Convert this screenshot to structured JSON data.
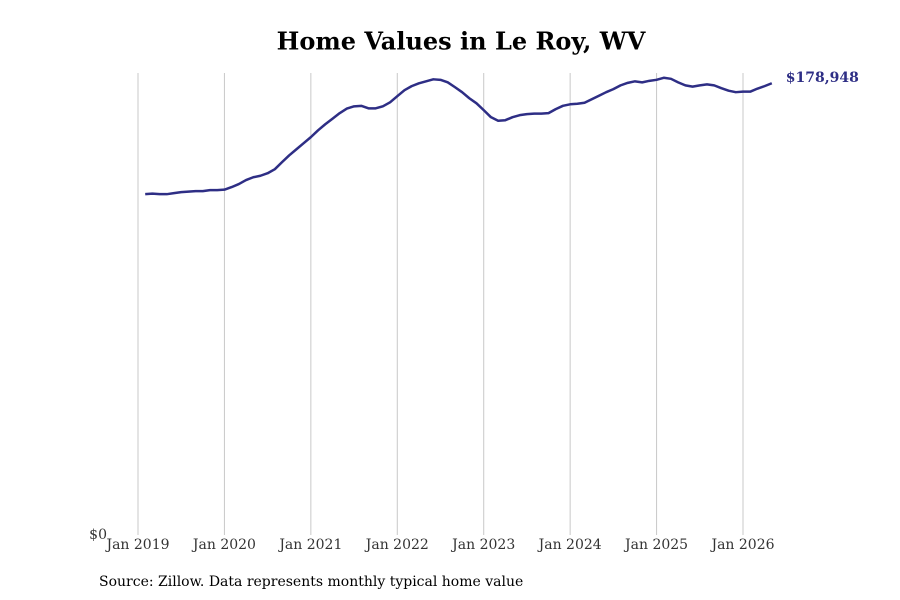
{
  "chart_data": {
    "type": "line",
    "title": "Home Values in Le Roy, WV",
    "source": "Source: Zillow. Data represents monthly typical home value",
    "x": [
      "2019-02",
      "2019-03",
      "2019-04",
      "2019-05",
      "2019-06",
      "2019-07",
      "2019-08",
      "2019-09",
      "2019-10",
      "2019-11",
      "2019-12",
      "2020-01",
      "2020-02",
      "2020-03",
      "2020-04",
      "2020-05",
      "2020-06",
      "2020-07",
      "2020-08",
      "2020-09",
      "2020-10",
      "2020-11",
      "2020-12",
      "2021-01",
      "2021-02",
      "2021-03",
      "2021-04",
      "2021-05",
      "2021-06",
      "2021-07",
      "2021-08",
      "2021-09",
      "2021-10",
      "2021-11",
      "2021-12",
      "2022-01",
      "2022-02",
      "2022-03",
      "2022-04",
      "2022-05",
      "2022-06",
      "2022-07",
      "2022-08",
      "2022-09",
      "2022-10",
      "2022-11",
      "2022-12",
      "2023-01",
      "2023-02",
      "2023-03",
      "2023-04",
      "2023-05",
      "2023-06",
      "2023-07",
      "2023-08",
      "2023-09",
      "2023-10",
      "2023-11",
      "2023-12",
      "2024-01",
      "2024-02",
      "2024-03",
      "2024-04",
      "2024-05",
      "2024-06",
      "2024-07",
      "2024-08",
      "2024-09",
      "2024-10",
      "2024-11",
      "2024-12",
      "2025-01",
      "2025-02",
      "2025-03",
      "2025-04",
      "2025-05",
      "2025-06",
      "2025-07",
      "2025-08",
      "2025-09",
      "2025-10",
      "2025-11",
      "2025-12",
      "2026-01",
      "2026-02",
      "2026-03",
      "2026-04",
      "2026-05"
    ],
    "series": [
      {
        "name": "Le Roy, WV",
        "color": "#2e2e85",
        "values": [
          135000,
          135200,
          135000,
          135000,
          135400,
          135800,
          136000,
          136200,
          136200,
          136600,
          136600,
          136800,
          137800,
          139000,
          140600,
          141700,
          142300,
          143300,
          144900,
          147700,
          150400,
          152800,
          155200,
          157600,
          160300,
          162700,
          164900,
          167100,
          168900,
          169800,
          170000,
          169000,
          169000,
          169800,
          171400,
          173800,
          176200,
          177800,
          178900,
          179700,
          180500,
          180300,
          179300,
          177400,
          175400,
          173000,
          171000,
          168300,
          165500,
          164100,
          164300,
          165500,
          166300,
          166700,
          166900,
          166900,
          167100,
          168700,
          170000,
          170600,
          170800,
          171200,
          172600,
          174000,
          175400,
          176600,
          178100,
          179100,
          179700,
          179300,
          179900,
          180300,
          181100,
          180700,
          179300,
          178100,
          177600,
          178100,
          178500,
          178100,
          177000,
          176000,
          175400,
          175600,
          175600,
          176800,
          177800,
          178948
        ],
        "value_labels": [
          null,
          null,
          null,
          null,
          null,
          null,
          null,
          null,
          null,
          null,
          null,
          null,
          null,
          null,
          null,
          null,
          null,
          null,
          null,
          null,
          null,
          null,
          null,
          null,
          null,
          null,
          null,
          null,
          null,
          null,
          null,
          null,
          null,
          null,
          null,
          null,
          null,
          null,
          null,
          null,
          null,
          null,
          null,
          null,
          null,
          null,
          null,
          null,
          null,
          null,
          null,
          null,
          null,
          null,
          null,
          null,
          null,
          null,
          null,
          null,
          null,
          null,
          null,
          null,
          null,
          null,
          null,
          null,
          null,
          null,
          null,
          null,
          null,
          null,
          null,
          null,
          null,
          null,
          null,
          null,
          null,
          null,
          null,
          null,
          null,
          null,
          null,
          "$178,948"
        ]
      }
    ],
    "xlim": [
      "2019-01",
      "2026-01"
    ],
    "xticks": [
      {
        "value": "2019-01",
        "label": "Jan 2019"
      },
      {
        "value": "2020-01",
        "label": "Jan 2020"
      },
      {
        "value": "2021-01",
        "label": "Jan 2021"
      },
      {
        "value": "2022-01",
        "label": "Jan 2022"
      },
      {
        "value": "2023-01",
        "label": "Jan 2023"
      },
      {
        "value": "2024-01",
        "label": "Jan 2024"
      },
      {
        "value": "2025-01",
        "label": "Jan 2025"
      },
      {
        "value": "2026-01",
        "label": "Jan 2026"
      }
    ],
    "ylim": [
      0,
      183000
    ],
    "yticks": [
      {
        "value": 0,
        "label": "$0"
      }
    ],
    "grid": "x"
  }
}
